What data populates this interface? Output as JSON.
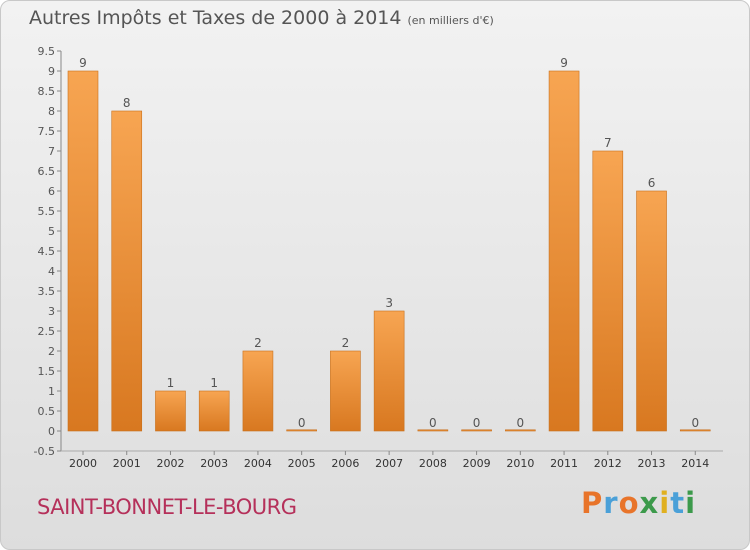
{
  "header": {
    "title": "Autres Impôts et Taxes de 2000 à 2014",
    "subtitle": "(en milliers d'€)"
  },
  "footer": {
    "commune": "SAINT-BONNET-LE-BOURG",
    "brand": "Proxiti",
    "brand_colors": [
      "#e8742a",
      "#4aa0d8",
      "#e8742a",
      "#3c9a4b",
      "#e0b020",
      "#4aa0d8",
      "#3c9a4b"
    ]
  },
  "colors": {
    "bar_top": "#f7a552",
    "bar_bottom": "#d87820",
    "bar_stroke": "#c8701c",
    "commune": "#b5305a",
    "text": "#555555"
  },
  "chart_data": {
    "type": "bar",
    "title": "Autres Impôts et Taxes de 2000 à 2014",
    "subtitle": "(en milliers d'€)",
    "categories": [
      "2000",
      "2001",
      "2002",
      "2003",
      "2004",
      "2005",
      "2006",
      "2007",
      "2008",
      "2009",
      "2010",
      "2011",
      "2012",
      "2013",
      "2014"
    ],
    "values": [
      9,
      8,
      1,
      1,
      2,
      0,
      2,
      3,
      0,
      0,
      0,
      9,
      7,
      6,
      0
    ],
    "value_labels": [
      "9",
      "8",
      "1",
      "1",
      "2",
      "0",
      "2",
      "3",
      "0",
      "0",
      "0",
      "9",
      "7",
      "6",
      "0"
    ],
    "yticks": [
      "-0.5",
      "0",
      "0.5",
      "1",
      "1.5",
      "2",
      "2.5",
      "3",
      "3.5",
      "4",
      "4.5",
      "5",
      "5.5",
      "6",
      "6.5",
      "7",
      "7.5",
      "8",
      "8.5",
      "9",
      "9.5"
    ],
    "ylim": [
      -0.5,
      9.5
    ],
    "grid": false
  }
}
